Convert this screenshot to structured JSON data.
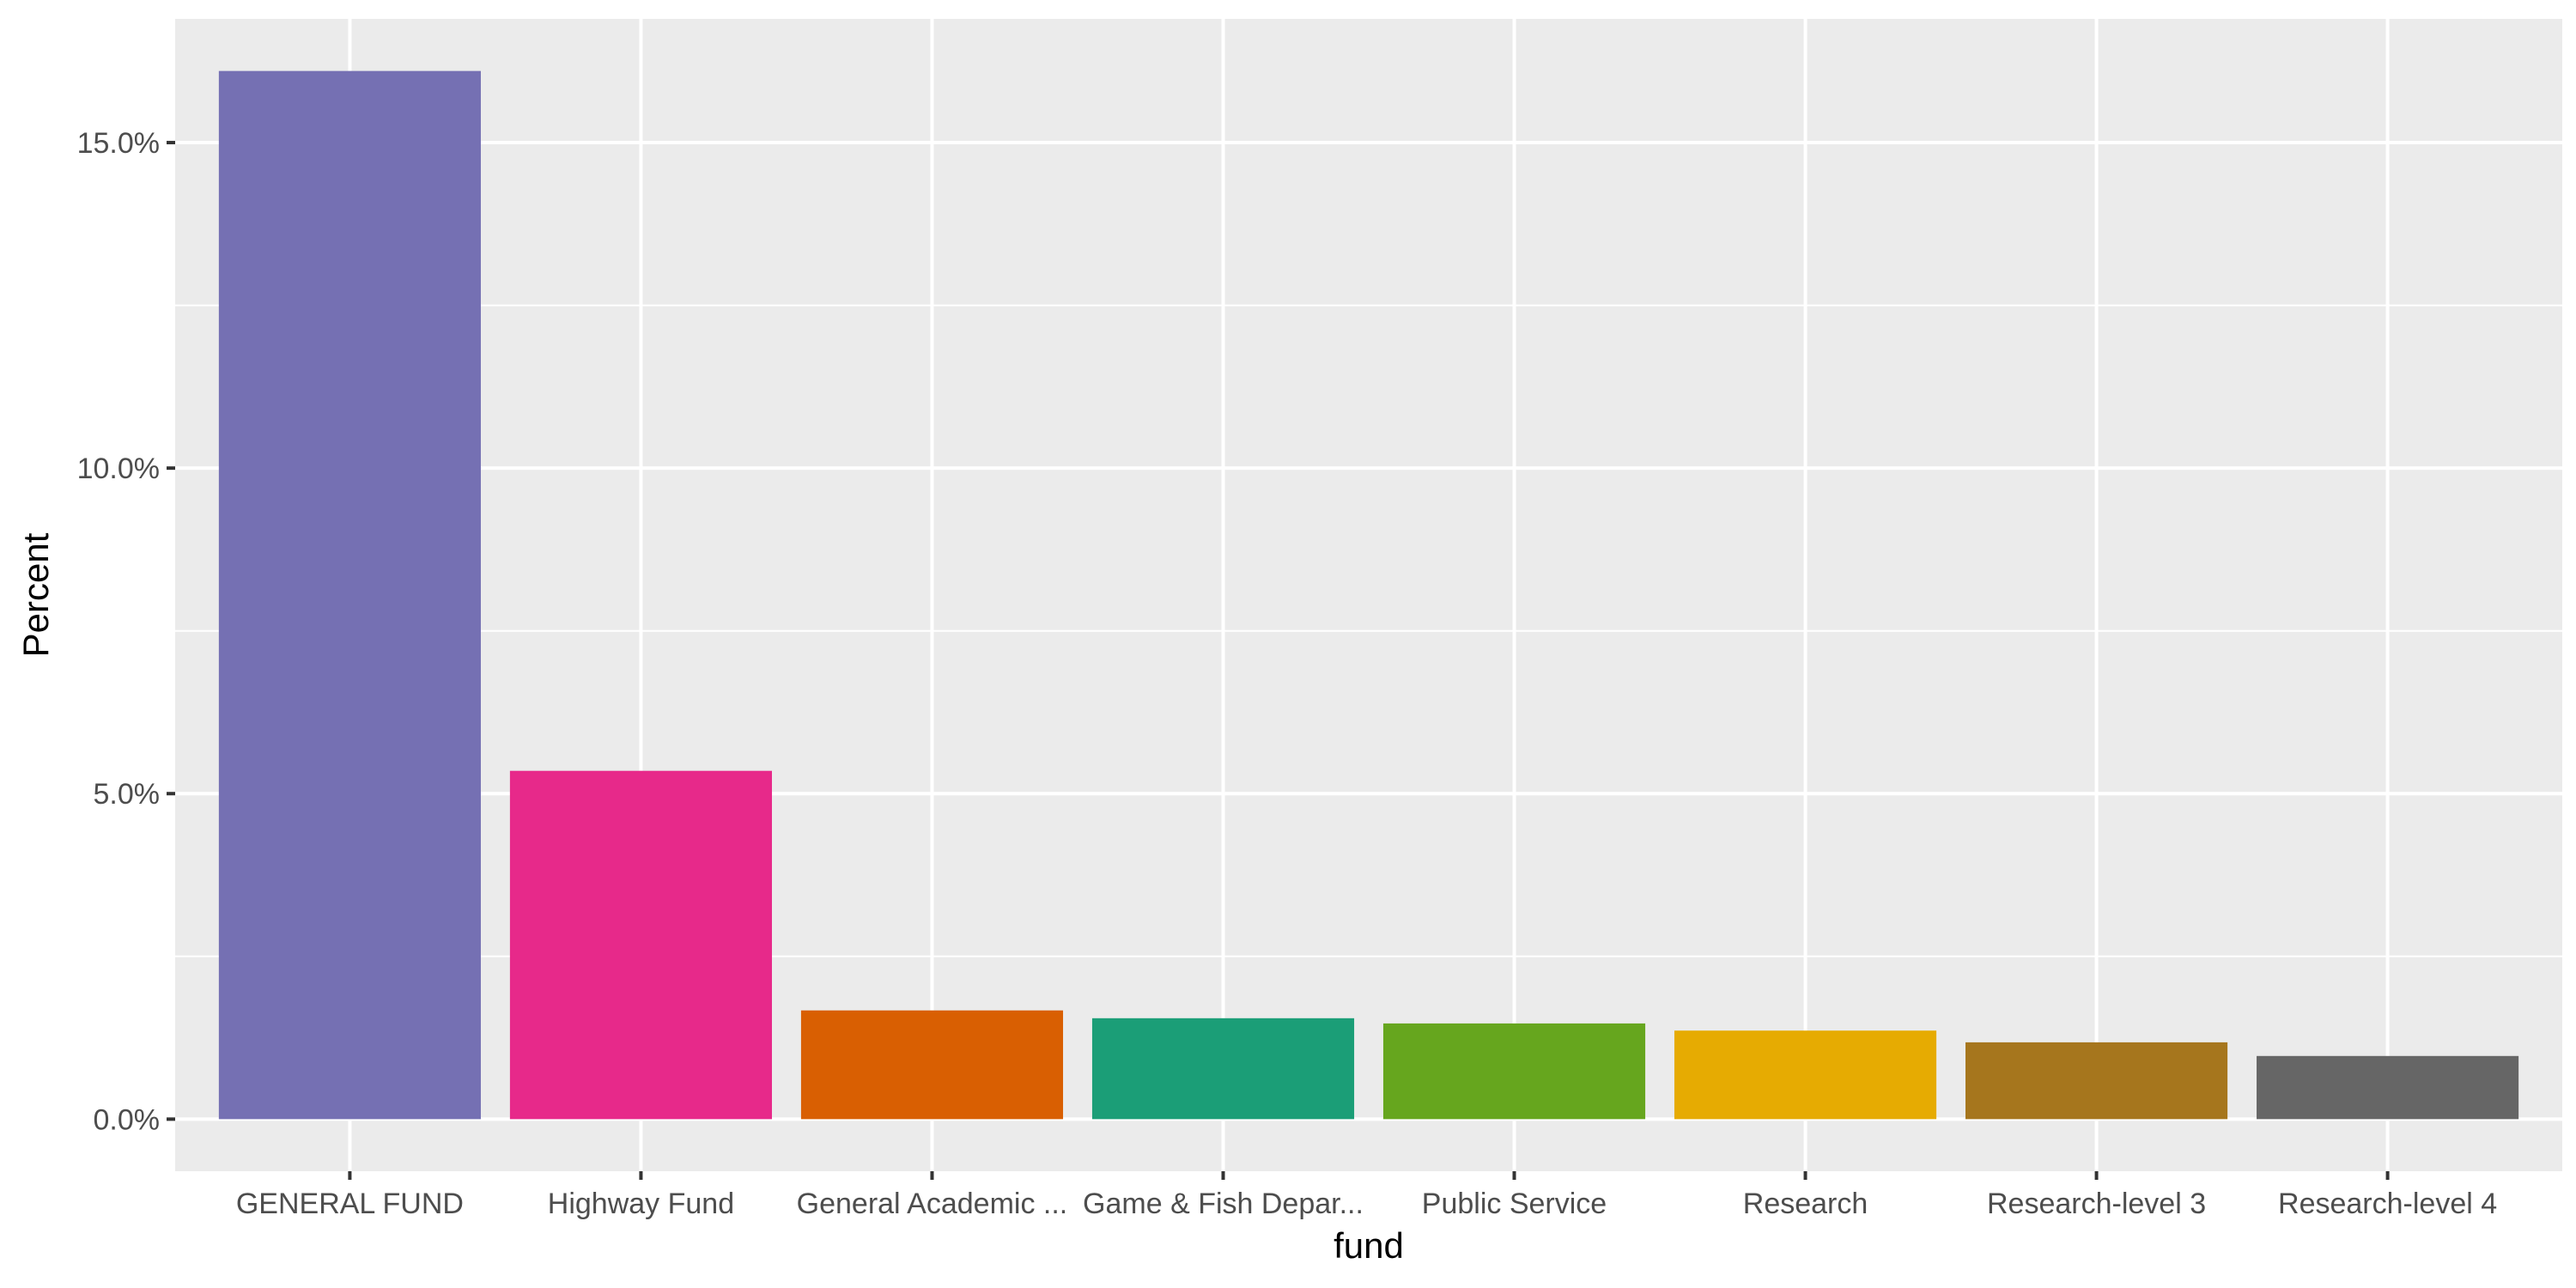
{
  "chart_data": {
    "type": "bar",
    "xlabel": "fund",
    "ylabel": "Percent",
    "categories": [
      "GENERAL FUND",
      "Highway Fund",
      "General Academic ...",
      "Game & Fish Depar...",
      "Public Service",
      "Research",
      "Research-level 3",
      "Research-level 4"
    ],
    "values": [
      16.1,
      5.35,
      1.67,
      1.55,
      1.47,
      1.36,
      1.18,
      0.97
    ],
    "colors": [
      "#7570b3",
      "#e7298a",
      "#d95f02",
      "#1b9e77",
      "#66a61e",
      "#e6ab02",
      "#a6761d",
      "#666666"
    ],
    "ylim": [
      -0.8,
      16.9
    ],
    "yticks": [
      0,
      5,
      10,
      15
    ],
    "ytick_labels": [
      "0.0%",
      "5.0%",
      "10.0%",
      "15.0%"
    ],
    "grid": true,
    "panel_background": "#ebebeb",
    "gridline_color": "#ffffff",
    "legend": "none"
  }
}
